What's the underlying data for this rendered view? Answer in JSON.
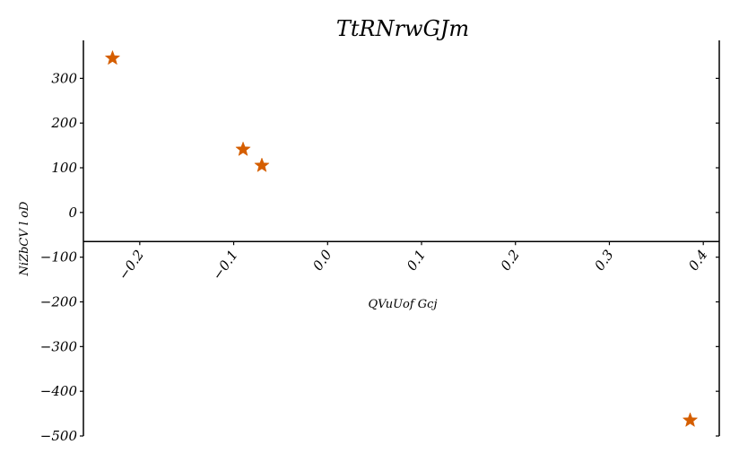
{
  "chart_data": {
    "type": "scatter",
    "title": "TtRNrwGJm",
    "xlabel": "QVuUof Gcj",
    "ylabel": "NiZbCV l oD",
    "xlim": [
      -0.26,
      0.417
    ],
    "ylim": [
      -500,
      385
    ],
    "x_ticks": [
      -0.2,
      -0.1,
      0.0,
      0.1,
      0.2,
      0.3,
      0.4
    ],
    "x_tick_labels": [
      "−0.2",
      "−0.1",
      "0.0",
      "0.1",
      "0.2",
      "0.3",
      "0.4"
    ],
    "y_ticks": [
      300,
      200,
      100,
      0,
      -100,
      -200,
      -300,
      -400,
      -500
    ],
    "y_tick_labels": [
      "300",
      "200",
      "100",
      "0",
      "−100",
      "−200",
      "−300",
      "−400",
      "−500"
    ],
    "x_axis_at_y": -65,
    "grid": false,
    "marker": "star",
    "series": [
      {
        "color": "#d55e00",
        "points": [
          {
            "x": -0.229,
            "y": 345
          },
          {
            "x": -0.09,
            "y": 141
          },
          {
            "x": -0.07,
            "y": 105
          },
          {
            "x": 0.386,
            "y": -465
          }
        ]
      }
    ]
  }
}
